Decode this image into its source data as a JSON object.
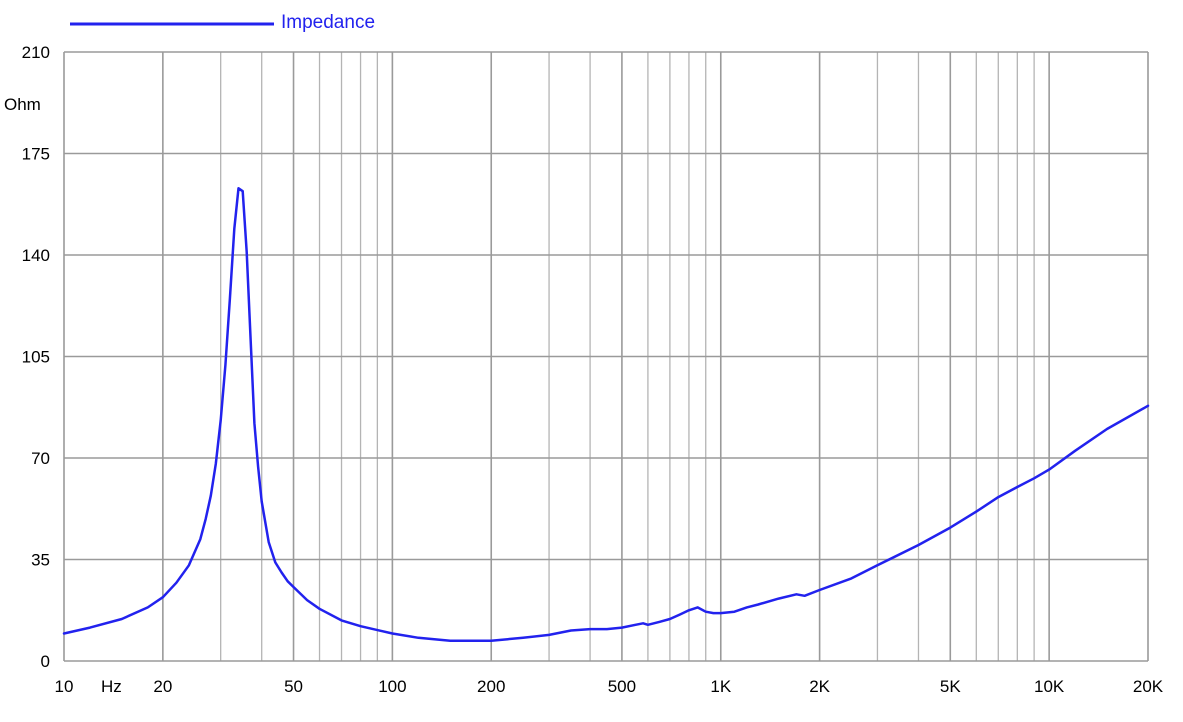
{
  "chart_data": {
    "type": "line",
    "title": "",
    "xlabel": "Hz",
    "ylabel": "Ohm",
    "x_scale": "log",
    "xlim": [
      10,
      20000
    ],
    "ylim": [
      0,
      210
    ],
    "grid": true,
    "legend_position": "top-left",
    "x_ticks": [
      {
        "value": 10,
        "label": "10"
      },
      {
        "value": 20,
        "label": "20"
      },
      {
        "value": 50,
        "label": "50"
      },
      {
        "value": 100,
        "label": "100"
      },
      {
        "value": 200,
        "label": "200"
      },
      {
        "value": 500,
        "label": "500"
      },
      {
        "value": 1000,
        "label": "1K"
      },
      {
        "value": 2000,
        "label": "2K"
      },
      {
        "value": 5000,
        "label": "5K"
      },
      {
        "value": 10000,
        "label": "10K"
      },
      {
        "value": 20000,
        "label": "20K"
      }
    ],
    "y_ticks": [
      0,
      35,
      70,
      105,
      140,
      175,
      210
    ],
    "series": [
      {
        "name": "Impedance",
        "color": "#2222ee",
        "x": [
          10,
          12,
          15,
          18,
          20,
          22,
          24,
          26,
          27,
          28,
          29,
          30,
          31,
          32,
          33,
          34,
          35,
          36,
          37,
          38,
          39,
          40,
          42,
          44,
          46,
          48,
          50,
          55,
          60,
          70,
          80,
          100,
          120,
          150,
          200,
          250,
          300,
          350,
          400,
          450,
          500,
          550,
          580,
          600,
          650,
          700,
          750,
          800,
          850,
          900,
          950,
          1000,
          1100,
          1200,
          1300,
          1500,
          1700,
          1800,
          2000,
          2500,
          3000,
          4000,
          5000,
          6000,
          7000,
          8000,
          9000,
          10000,
          12000,
          15000,
          20000
        ],
        "y": [
          9.5,
          11.5,
          14.5,
          18.5,
          22,
          27,
          33,
          42,
          49,
          57,
          68,
          83,
          102,
          125,
          149,
          163,
          162,
          141,
          111,
          82,
          67,
          55,
          41,
          34,
          30.5,
          27.5,
          25.5,
          21,
          18,
          14,
          12,
          9.5,
          8,
          7,
          7,
          8,
          9,
          10.5,
          11,
          11,
          11.5,
          12.5,
          13,
          12.5,
          13.5,
          14.5,
          16,
          17.5,
          18.5,
          17,
          16.5,
          16.5,
          17,
          18.5,
          19.5,
          21.5,
          23,
          22.5,
          24.5,
          28.5,
          33,
          40,
          46,
          51.5,
          56.5,
          60,
          63,
          66,
          72.5,
          80,
          88
        ]
      }
    ]
  }
}
